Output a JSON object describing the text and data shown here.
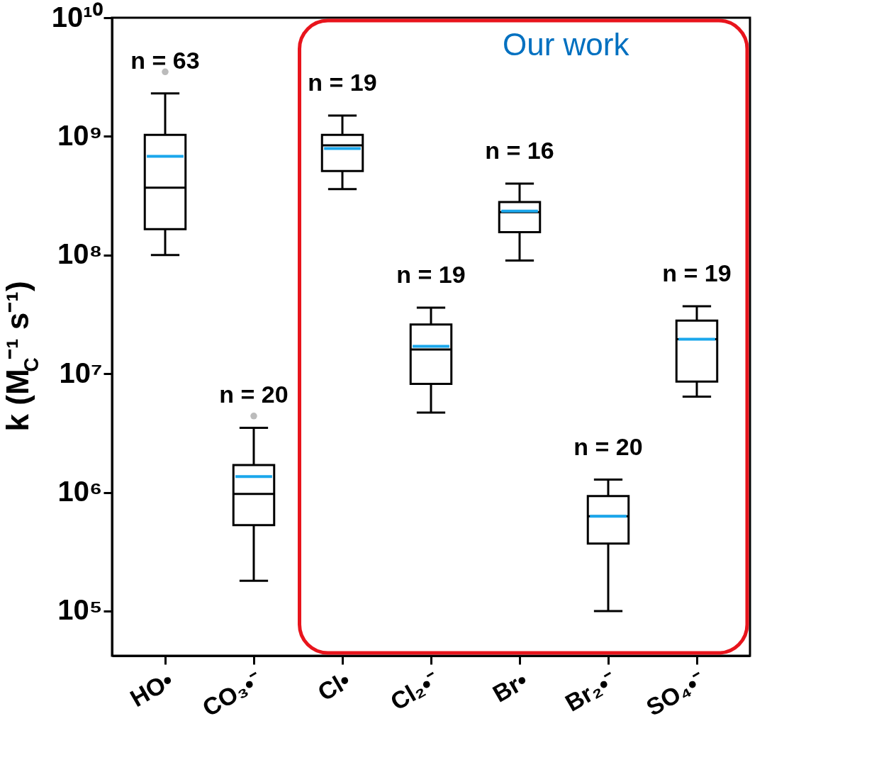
{
  "chart_data": {
    "type": "box",
    "ylabel": "k (M$_{C}$⁻¹ s⁻¹)",
    "categories": [
      "HO•",
      "CO₃•⁻",
      "Cl•",
      "Cl₂•⁻",
      "Br•",
      "Br₂•⁻",
      "SO₄•⁻"
    ],
    "boxes": [
      {
        "low": 100000000.0,
        "q1": 165000000.0,
        "median": 370000000.0,
        "q3": 1030000000.0,
        "high": 2300000000.0,
        "mean": 680000000.0,
        "outliers": [
          3500000000.0
        ]
      },
      {
        "low": 180000.0,
        "q1": 530000.0,
        "median": 970000.0,
        "q3": 1700000.0,
        "high": 3500000.0,
        "mean": 1360000.0,
        "outliers": [
          4400000.0
        ]
      },
      {
        "low": 360000000.0,
        "q1": 510000000.0,
        "median": 840000000.0,
        "q3": 1030000000.0,
        "high": 1500000000.0,
        "mean": 790000000.0
      },
      {
        "low": 4700000.0,
        "q1": 8200000.0,
        "median": 16000000.0,
        "q3": 26000000.0,
        "high": 36000000.0,
        "mean": 17000000.0
      },
      {
        "low": 90000000.0,
        "q1": 156000000.0,
        "median": 230000000.0,
        "q3": 280000000.0,
        "high": 400000000.0,
        "mean": 235000000.0
      },
      {
        "low": 100000.0,
        "q1": 370000.0,
        "median": 630000.0,
        "q3": 930000.0,
        "high": 1280000.0,
        "mean": 630000.0
      },
      {
        "low": 6400000.0,
        "q1": 8600000.0,
        "median": 19500000.0,
        "q3": 28000000.0,
        "high": 37000000.0,
        "mean": 19500000.0
      }
    ],
    "log": true,
    "ylim": [
      42000,
      10000000000.0
    ],
    "yticks": [
      {
        "value": 100000,
        "label": "10⁵"
      },
      {
        "value": 1000000,
        "label": "10⁶"
      },
      {
        "value": 10000000,
        "label": "10⁷"
      },
      {
        "value": 100000000,
        "label": "10⁸"
      },
      {
        "value": 1000000000,
        "label": "10⁹"
      },
      {
        "value": 10000000000,
        "label": "10¹⁰"
      }
    ],
    "grid": false,
    "annotations": [
      "n = 63",
      "n = 20",
      "n = 19",
      "n = 19",
      "n = 16",
      "n = 20",
      "n = 19",
      "Our work"
    ]
  }
}
